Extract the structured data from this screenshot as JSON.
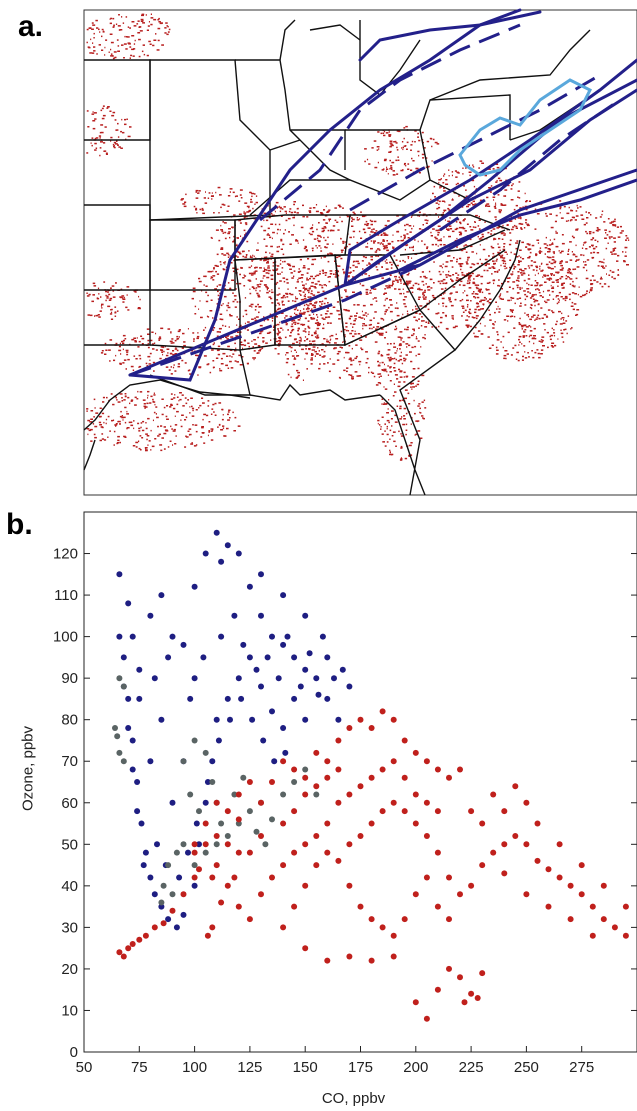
{
  "panels": {
    "a_label": "a.",
    "b_label": "b."
  },
  "colors": {
    "cloud_red": "#b81f1f",
    "trajectory_dark": "#23208a",
    "trajectory_light": "#5aa8dc",
    "blue_points": "#1e1e82",
    "gray_points": "#5a6464",
    "red_points": "#c0201c"
  },
  "chart_data": {
    "type": "scatter",
    "xlabel": "CO, ppbv",
    "ylabel": "Ozone, ppbv",
    "xlim": [
      50,
      300
    ],
    "ylim": [
      0,
      130
    ],
    "xticks": [
      50,
      75,
      100,
      125,
      150,
      175,
      200,
      225,
      250,
      275
    ],
    "yticks": [
      0,
      10,
      20,
      30,
      40,
      50,
      60,
      70,
      80,
      90,
      100,
      110,
      120
    ],
    "grid": false,
    "series": [
      {
        "color_key": "blue_points",
        "points": [
          [
            66,
            115
          ],
          [
            70,
            108
          ],
          [
            72,
            100
          ],
          [
            68,
            95
          ],
          [
            75,
            92
          ],
          [
            80,
            105
          ],
          [
            85,
            110
          ],
          [
            90,
            100
          ],
          [
            95,
            98
          ],
          [
            100,
            112
          ],
          [
            105,
            120
          ],
          [
            110,
            125
          ],
          [
            112,
            118
          ],
          [
            115,
            122
          ],
          [
            120,
            120
          ],
          [
            125,
            112
          ],
          [
            130,
            105
          ],
          [
            135,
            100
          ],
          [
            140,
            98
          ],
          [
            145,
            95
          ],
          [
            150,
            92
          ],
          [
            155,
            90
          ],
          [
            160,
            85
          ],
          [
            165,
            80
          ],
          [
            158,
            100
          ],
          [
            150,
            105
          ],
          [
            140,
            110
          ],
          [
            130,
            115
          ],
          [
            70,
            85
          ],
          [
            72,
            75
          ],
          [
            74,
            65
          ],
          [
            76,
            55
          ],
          [
            78,
            48
          ],
          [
            80,
            42
          ],
          [
            82,
            38
          ],
          [
            85,
            35
          ],
          [
            88,
            32
          ],
          [
            92,
            30
          ],
          [
            95,
            33
          ],
          [
            100,
            40
          ],
          [
            102,
            50
          ],
          [
            105,
            60
          ],
          [
            108,
            70
          ],
          [
            110,
            80
          ],
          [
            115,
            85
          ],
          [
            120,
            90
          ],
          [
            125,
            95
          ],
          [
            130,
            88
          ],
          [
            135,
            82
          ],
          [
            140,
            78
          ],
          [
            145,
            85
          ],
          [
            150,
            80
          ],
          [
            90,
            60
          ],
          [
            95,
            70
          ],
          [
            100,
            90
          ],
          [
            85,
            80
          ],
          [
            80,
            70
          ],
          [
            75,
            85
          ],
          [
            82,
            90
          ],
          [
            88,
            95
          ],
          [
            98,
            85
          ],
          [
            104,
            95
          ],
          [
            112,
            100
          ],
          [
            118,
            105
          ],
          [
            122,
            98
          ],
          [
            128,
            92
          ],
          [
            133,
            95
          ],
          [
            138,
            90
          ],
          [
            142,
            100
          ],
          [
            148,
            88
          ],
          [
            152,
            96
          ],
          [
            156,
            86
          ],
          [
            160,
            95
          ],
          [
            163,
            90
          ],
          [
            167,
            92
          ],
          [
            170,
            88
          ],
          [
            66,
            100
          ],
          [
            68,
            88
          ],
          [
            70,
            78
          ],
          [
            72,
            68
          ],
          [
            74,
            58
          ],
          [
            77,
            45
          ],
          [
            83,
            50
          ],
          [
            87,
            45
          ],
          [
            93,
            42
          ],
          [
            97,
            48
          ],
          [
            101,
            55
          ],
          [
            106,
            65
          ],
          [
            111,
            75
          ],
          [
            116,
            80
          ],
          [
            121,
            85
          ],
          [
            126,
            80
          ],
          [
            131,
            75
          ],
          [
            136,
            70
          ],
          [
            141,
            72
          ]
        ]
      },
      {
        "color_key": "gray_points",
        "points": [
          [
            64,
            78
          ],
          [
            65,
            76
          ],
          [
            66,
            72
          ],
          [
            68,
            70
          ],
          [
            66,
            90
          ],
          [
            68,
            88
          ],
          [
            95,
            70
          ],
          [
            100,
            75
          ],
          [
            105,
            72
          ],
          [
            108,
            65
          ],
          [
            110,
            60
          ],
          [
            112,
            55
          ],
          [
            95,
            50
          ],
          [
            92,
            48
          ],
          [
            88,
            45
          ],
          [
            86,
            40
          ],
          [
            100,
            45
          ],
          [
            105,
            48
          ],
          [
            110,
            50
          ],
          [
            115,
            52
          ],
          [
            120,
            55
          ],
          [
            125,
            58
          ],
          [
            130,
            60
          ],
          [
            135,
            56
          ],
          [
            140,
            62
          ],
          [
            145,
            65
          ],
          [
            150,
            68
          ],
          [
            155,
            62
          ],
          [
            85,
            36
          ],
          [
            90,
            38
          ],
          [
            128,
            53
          ],
          [
            132,
            50
          ],
          [
            118,
            62
          ],
          [
            122,
            66
          ],
          [
            102,
            58
          ],
          [
            98,
            62
          ]
        ]
      },
      {
        "color_key": "red_points",
        "points": [
          [
            66,
            24
          ],
          [
            68,
            23
          ],
          [
            70,
            25
          ],
          [
            72,
            26
          ],
          [
            75,
            27
          ],
          [
            78,
            28
          ],
          [
            82,
            30
          ],
          [
            86,
            31
          ],
          [
            90,
            34
          ],
          [
            95,
            38
          ],
          [
            100,
            42
          ],
          [
            100,
            50
          ],
          [
            105,
            55
          ],
          [
            110,
            60
          ],
          [
            115,
            58
          ],
          [
            120,
            62
          ],
          [
            125,
            65
          ],
          [
            130,
            60
          ],
          [
            135,
            65
          ],
          [
            140,
            70
          ],
          [
            145,
            68
          ],
          [
            150,
            66
          ],
          [
            155,
            72
          ],
          [
            160,
            70
          ],
          [
            165,
            75
          ],
          [
            170,
            78
          ],
          [
            175,
            80
          ],
          [
            180,
            78
          ],
          [
            185,
            82
          ],
          [
            190,
            80
          ],
          [
            195,
            75
          ],
          [
            200,
            72
          ],
          [
            205,
            70
          ],
          [
            210,
            68
          ],
          [
            215,
            66
          ],
          [
            220,
            68
          ],
          [
            110,
            45
          ],
          [
            115,
            40
          ],
          [
            120,
            35
          ],
          [
            125,
            32
          ],
          [
            130,
            38
          ],
          [
            135,
            42
          ],
          [
            140,
            45
          ],
          [
            145,
            48
          ],
          [
            150,
            50
          ],
          [
            155,
            52
          ],
          [
            160,
            48
          ],
          [
            165,
            46
          ],
          [
            170,
            50
          ],
          [
            175,
            52
          ],
          [
            180,
            55
          ],
          [
            185,
            58
          ],
          [
            190,
            60
          ],
          [
            195,
            58
          ],
          [
            200,
            55
          ],
          [
            205,
            52
          ],
          [
            210,
            48
          ],
          [
            215,
            42
          ],
          [
            220,
            38
          ],
          [
            225,
            40
          ],
          [
            230,
            45
          ],
          [
            235,
            48
          ],
          [
            240,
            50
          ],
          [
            245,
            52
          ],
          [
            250,
            50
          ],
          [
            255,
            46
          ],
          [
            260,
            44
          ],
          [
            265,
            42
          ],
          [
            270,
            40
          ],
          [
            275,
            38
          ],
          [
            280,
            35
          ],
          [
            285,
            32
          ],
          [
            290,
            30
          ],
          [
            295,
            28
          ],
          [
            240,
            43
          ],
          [
            250,
            38
          ],
          [
            260,
            35
          ],
          [
            270,
            32
          ],
          [
            280,
            28
          ],
          [
            230,
            55
          ],
          [
            240,
            58
          ],
          [
            250,
            60
          ],
          [
            215,
            20
          ],
          [
            220,
            18
          ],
          [
            222,
            12
          ],
          [
            225,
            14
          ],
          [
            228,
            13
          ],
          [
            230,
            19
          ],
          [
            200,
            12
          ],
          [
            205,
            8
          ],
          [
            210,
            15
          ],
          [
            190,
            23
          ],
          [
            180,
            22
          ],
          [
            170,
            23
          ],
          [
            160,
            22
          ],
          [
            150,
            25
          ],
          [
            140,
            30
          ],
          [
            145,
            35
          ],
          [
            150,
            40
          ],
          [
            155,
            45
          ],
          [
            160,
            55
          ],
          [
            165,
            60
          ],
          [
            170,
            62
          ],
          [
            175,
            64
          ],
          [
            180,
            66
          ],
          [
            185,
            68
          ],
          [
            190,
            70
          ],
          [
            195,
            66
          ],
          [
            200,
            62
          ],
          [
            205,
            60
          ],
          [
            210,
            58
          ],
          [
            120,
            48
          ],
          [
            118,
            42
          ],
          [
            112,
            36
          ],
          [
            108,
            30
          ],
          [
            106,
            28
          ],
          [
            170,
            40
          ],
          [
            175,
            35
          ],
          [
            180,
            32
          ],
          [
            185,
            30
          ],
          [
            190,
            28
          ],
          [
            195,
            32
          ],
          [
            200,
            38
          ],
          [
            205,
            42
          ],
          [
            210,
            35
          ],
          [
            215,
            32
          ],
          [
            225,
            58
          ],
          [
            235,
            62
          ],
          [
            245,
            64
          ],
          [
            255,
            55
          ],
          [
            265,
            50
          ],
          [
            275,
            45
          ],
          [
            285,
            40
          ],
          [
            295,
            35
          ],
          [
            140,
            55
          ],
          [
            145,
            58
          ],
          [
            150,
            62
          ],
          [
            155,
            64
          ],
          [
            160,
            66
          ],
          [
            165,
            68
          ],
          [
            130,
            52
          ],
          [
            125,
            48
          ],
          [
            120,
            56
          ],
          [
            115,
            50
          ],
          [
            110,
            52
          ],
          [
            105,
            50
          ],
          [
            100,
            48
          ],
          [
            102,
            44
          ],
          [
            108,
            42
          ]
        ]
      }
    ]
  }
}
